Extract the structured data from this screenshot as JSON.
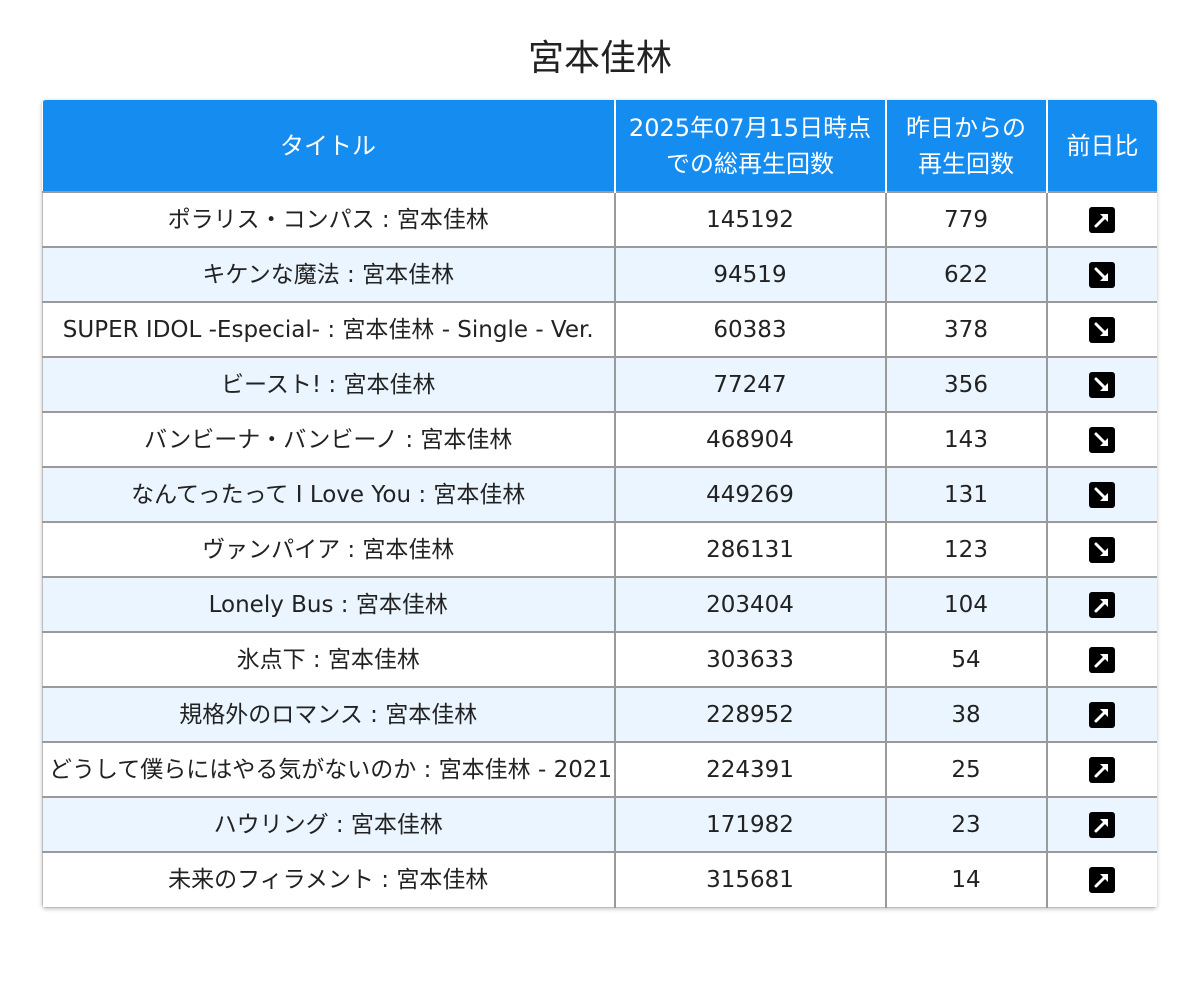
{
  "title": "宮本佳林",
  "table": {
    "headers": {
      "title": "タイトル",
      "total_line1": "2025年07月15日時点",
      "total_line2": "での総再生回数",
      "daily_line1": "昨日からの",
      "daily_line2": "再生回数",
      "trend": "前日比"
    },
    "rows": [
      {
        "title": "ポラリス・コンパス : 宮本佳林",
        "total": "145192",
        "daily": "779",
        "trend": "up-right-arrow-icon"
      },
      {
        "title": "キケンな魔法 : 宮本佳林",
        "total": "94519",
        "daily": "622",
        "trend": "down-right-arrow-icon"
      },
      {
        "title": "SUPER IDOL -Especial- : 宮本佳林 - Single - Ver.",
        "total": "60383",
        "daily": "378",
        "trend": "down-right-arrow-icon"
      },
      {
        "title": "ビースト! : 宮本佳林",
        "total": "77247",
        "daily": "356",
        "trend": "down-right-arrow-icon"
      },
      {
        "title": "バンビーナ・バンビーノ : 宮本佳林",
        "total": "468904",
        "daily": "143",
        "trend": "down-right-arrow-icon"
      },
      {
        "title": "なんてったって I Love You : 宮本佳林",
        "total": "449269",
        "daily": "131",
        "trend": "down-right-arrow-icon"
      },
      {
        "title": "ヴァンパイア : 宮本佳林",
        "total": "286131",
        "daily": "123",
        "trend": "down-right-arrow-icon"
      },
      {
        "title": "Lonely Bus : 宮本佳林",
        "total": "203404",
        "daily": "104",
        "trend": "up-right-arrow-icon"
      },
      {
        "title": "氷点下 : 宮本佳林",
        "total": "303633",
        "daily": "54",
        "trend": "up-right-arrow-icon"
      },
      {
        "title": "規格外のロマンス : 宮本佳林",
        "total": "228952",
        "daily": "38",
        "trend": "up-right-arrow-icon"
      },
      {
        "title": "どうして僕らにはやる気がないのか : 宮本佳林 - 2021",
        "total": "224391",
        "daily": "25",
        "trend": "up-right-arrow-icon"
      },
      {
        "title": "ハウリング : 宮本佳林",
        "total": "171982",
        "daily": "23",
        "trend": "up-right-arrow-icon"
      },
      {
        "title": "未来のフィラメント : 宮本佳林",
        "total": "315681",
        "daily": "14",
        "trend": "up-right-arrow-icon"
      }
    ]
  }
}
